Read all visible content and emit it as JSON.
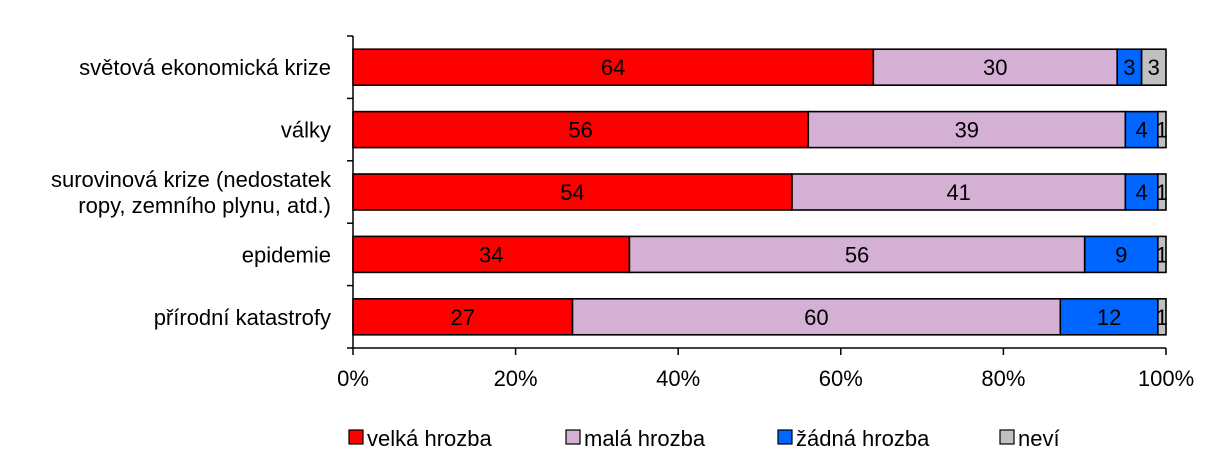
{
  "chart_data": {
    "type": "bar",
    "orientation": "horizontal",
    "stacking": "percent",
    "categories": [
      [
        "světová ekonomická krize"
      ],
      [
        "války"
      ],
      [
        "surovinová krize (nedostatek",
        "ropy, zemního plynu, atd.)"
      ],
      [
        "epidemie"
      ],
      [
        "přírodní katastrofy"
      ]
    ],
    "series": [
      {
        "name": "velká hrozba",
        "color": "#ff0000",
        "values": [
          64,
          56,
          54,
          34,
          27
        ]
      },
      {
        "name": "malá hrozba",
        "color": "#d4b0d4",
        "values": [
          30,
          39,
          41,
          56,
          60
        ]
      },
      {
        "name": "žádná hrozba",
        "color": "#0066ff",
        "values": [
          3,
          4,
          4,
          9,
          12
        ]
      },
      {
        "name": "neví",
        "color": "#c0c0c0",
        "values": [
          3,
          1,
          1,
          1,
          1
        ]
      }
    ],
    "xticks": [
      "0%",
      "20%",
      "40%",
      "60%",
      "80%",
      "100%"
    ],
    "xlim": [
      0,
      100
    ],
    "data_labels": true,
    "legend_position": "bottom",
    "grid": false
  }
}
